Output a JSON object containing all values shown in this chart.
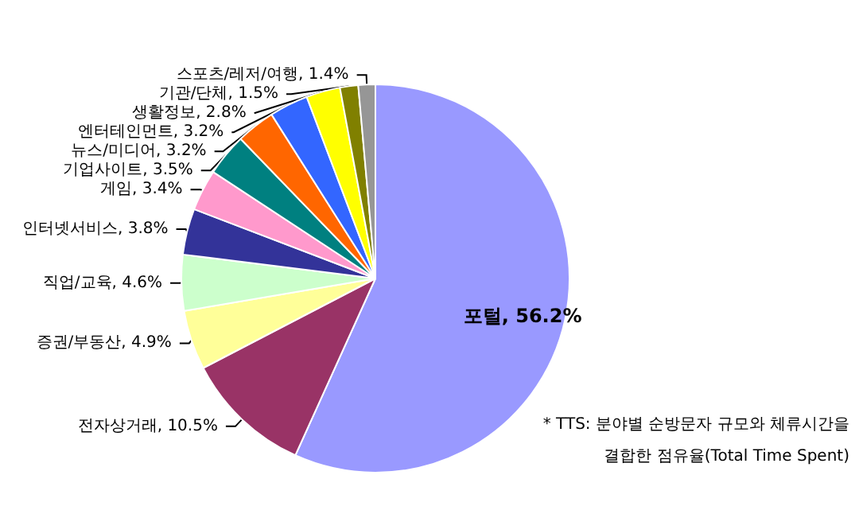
{
  "chart_data": {
    "type": "pie",
    "categories": [
      "포털",
      "전자상거래",
      "증권/부동산",
      "직업/교육",
      "인터넷서비스",
      "게임",
      "기업사이트",
      "뉴스/미디어",
      "엔터테인먼트",
      "생활정보",
      "기관/단체",
      "스포츠/레저/여행"
    ],
    "values": [
      56.2,
      10.5,
      4.9,
      4.6,
      3.8,
      3.4,
      3.5,
      3.2,
      3.2,
      2.8,
      1.5,
      1.4
    ],
    "value_labels": [
      "56.2%",
      "10.5%",
      "4.9%",
      "4.6%",
      "3.8%",
      "3.4%",
      "3.5%",
      "3.2%",
      "3.2%",
      "2.8%",
      "1.5%",
      "1.4%"
    ],
    "colors": [
      "#9999ff",
      "#993366",
      "#ffff99",
      "#ccffcc",
      "#333399",
      "#ff99cc",
      "#008080",
      "#ff6600",
      "#3366ff",
      "#ffff00",
      "#808000",
      "#969696"
    ],
    "annotations": [
      "* TTS: 분야별 순방문자 규모와 체류시간을",
      "결합한 점유율(Total Time Spent)"
    ],
    "legend": false
  }
}
